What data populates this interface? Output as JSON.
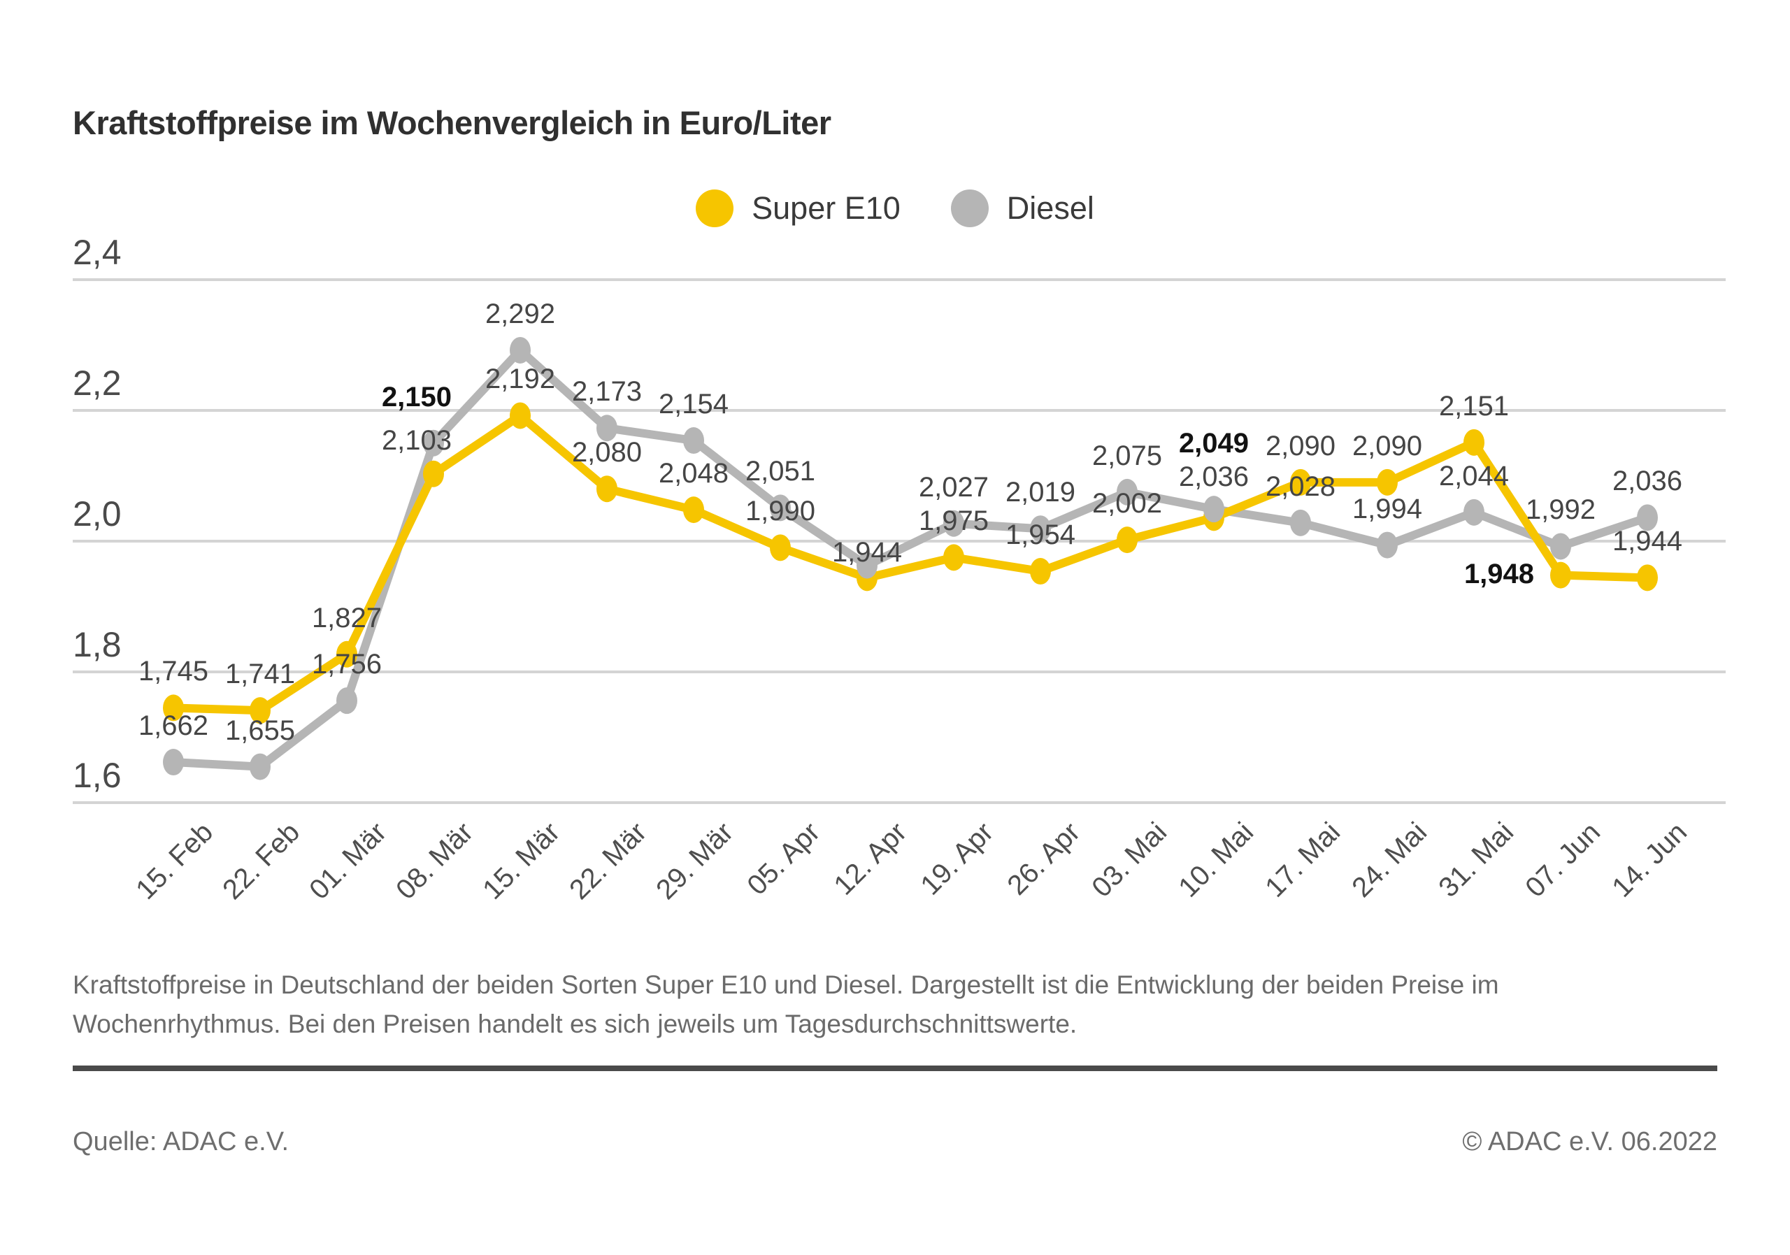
{
  "header": {
    "title": "Kraftstoffpreise im Wochenvergleich in Euro/Liter"
  },
  "legend": [
    {
      "label": "Super E10",
      "color": "#F6C500"
    },
    {
      "label": "Diesel",
      "color": "#B5B5B5"
    }
  ],
  "chart_data": {
    "type": "line",
    "title": "Kraftstoffpreise im Wochenvergleich in Euro/Liter",
    "unit": "Euro/Liter",
    "legend_position": "top-center",
    "grid": true,
    "categories": [
      "15. Feb",
      "22. Feb",
      "01. Mär",
      "08. Mär",
      "15. Mär",
      "22. Mär",
      "29. Mär",
      "05. Apr",
      "12. Apr",
      "19. Apr",
      "26. Apr",
      "03. Mai",
      "10. Mai",
      "17. Mai",
      "24. Mai",
      "31. Mai",
      "07. Jun",
      "14. Jun"
    ],
    "y_axis": {
      "tick_labels": [
        "2,4",
        "2,2",
        "2,0",
        "1,8",
        "1,6"
      ],
      "tick_values": [
        2.4,
        2.2,
        2.0,
        1.8,
        1.6
      ],
      "min": 1.6,
      "max": 2.4
    },
    "series": [
      {
        "name": "Super E10",
        "color": "#F6C500",
        "values": [
          1.745,
          1.741,
          1.827,
          2.103,
          2.192,
          2.08,
          2.048,
          1.99,
          1.944,
          1.975,
          1.954,
          2.002,
          2.036,
          2.09,
          2.09,
          2.151,
          1.948,
          1.944
        ],
        "labels": [
          "1,745",
          "1,741",
          "1,827",
          "2,103",
          "2,192",
          "2,080",
          "2,048",
          "1,990",
          "1,944",
          "1,975",
          "1,954",
          "2,002",
          "2,036",
          "2,090",
          "2,090",
          "2,151",
          "1,948",
          "1,944"
        ],
        "bold_label_indices": [
          16
        ]
      },
      {
        "name": "Diesel",
        "color": "#B5B5B5",
        "values": [
          1.662,
          1.655,
          1.756,
          2.15,
          2.292,
          2.173,
          2.154,
          2.051,
          1.963,
          2.027,
          2.019,
          2.075,
          2.049,
          2.028,
          1.994,
          2.044,
          1.992,
          2.036
        ],
        "labels": [
          "1,662",
          "1,655",
          "1,756",
          "2,150",
          "2,292",
          "2,173",
          "2,154",
          "2,051",
          "",
          "2,027",
          "2,019",
          "2,075",
          "2,049",
          "2,028",
          "1,994",
          "2,044",
          "1,992",
          "2,036"
        ],
        "bold_label_indices": [
          3,
          12
        ]
      }
    ]
  },
  "footer": {
    "lines": [
      "Kraftstoffpreise in Deutschland der beiden Sorten Super E10 und Diesel. Dargestellt ist die Entwicklung der beiden Preise im",
      "Wochenrhythmus. Bei den Preisen handelt es sich jeweils um Tagesdurchschnittswerte."
    ]
  },
  "source": {
    "left": "Quelle: ADAC e.V.",
    "right": "© ADAC e.V. 06.2022"
  }
}
